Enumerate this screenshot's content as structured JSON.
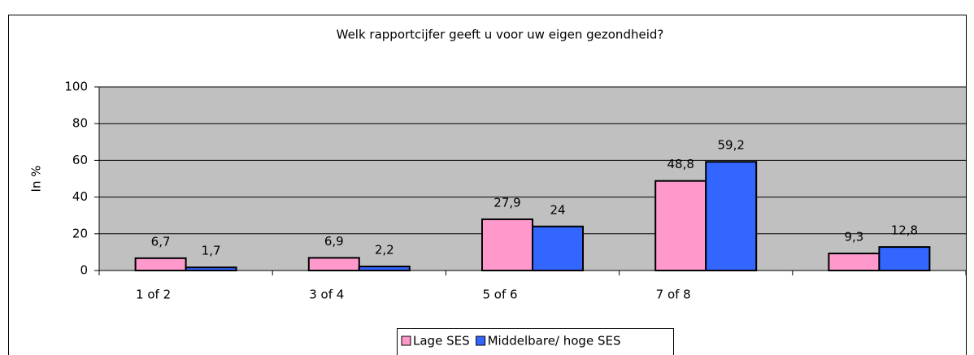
{
  "chart_data": {
    "type": "bar",
    "title": "Welk rapportcijfer geeft u voor uw eigen gezondheid?",
    "y_label": "In %",
    "categories": [
      "1 of 2",
      "3 of 4",
      "5 of 6",
      "7 of 8",
      null
    ],
    "series": [
      {
        "name": "Lage SES",
        "color": "#ff99cc",
        "values": [
          6.7,
          6.9,
          27.9,
          48.8,
          9.3
        ],
        "value_labels": [
          "6,7",
          "6,9",
          "27,9",
          "48,8",
          "9,3"
        ]
      },
      {
        "name": "Middelbare/ hoge SES",
        "color": "#3366ff",
        "values": [
          1.7,
          2.2,
          24,
          59.2,
          12.8
        ],
        "value_labels": [
          "1,7",
          "2,2",
          "24",
          "59,2",
          "12,8"
        ]
      }
    ],
    "ylim": [
      0,
      100
    ],
    "yticks": [
      0,
      20,
      40,
      60,
      80,
      100
    ],
    "grid": true,
    "legend": "bottom"
  }
}
